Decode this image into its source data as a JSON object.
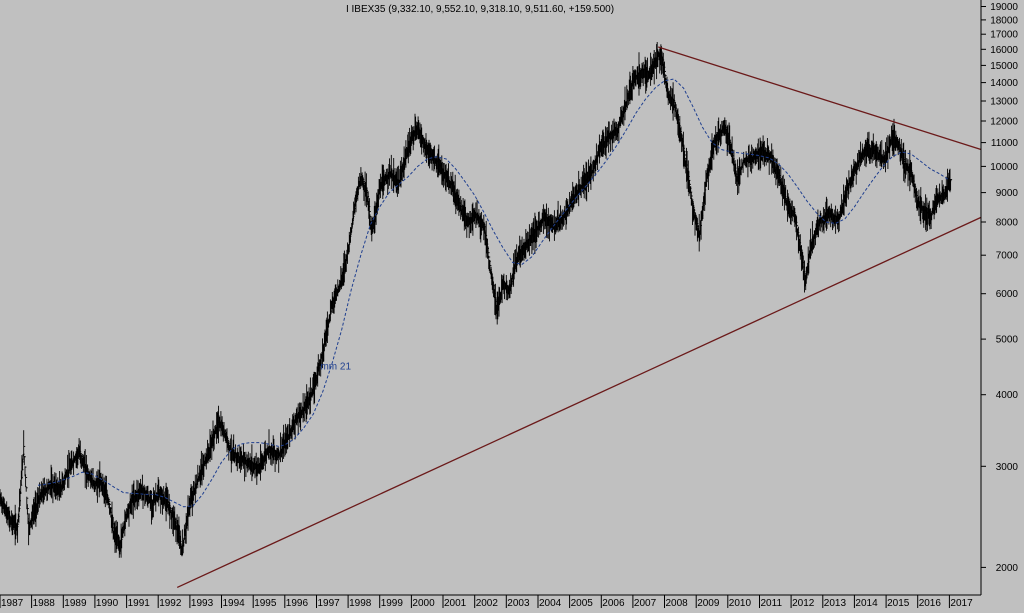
{
  "colors": {
    "background": "#c0c0c0",
    "bars": "#000000",
    "moving_average": "#1f3f8f",
    "trendlines": "#6b1a1a",
    "axis": "#000000"
  },
  "chart_data": {
    "type": "ohlc",
    "title": "I IBEX35 (9,332.10, 9,552.10, 9,318.10, 9,511.60, +159.500)",
    "xlabel": "",
    "ylabel": "",
    "y_scale": "log",
    "ylim": [
      1790,
      19500
    ],
    "xlim": [
      1987.0,
      2018.0
    ],
    "grid": false,
    "y_ticks": [
      2000,
      3000,
      4000,
      5000,
      6000,
      7000,
      8000,
      9000,
      10000,
      11000,
      12000,
      13000,
      14000,
      15000,
      16000,
      17000,
      18000,
      19000
    ],
    "x_ticks": [
      "1987",
      "1988",
      "1989",
      "1990",
      "1991",
      "1992",
      "1993",
      "1994",
      "1995",
      "1996",
      "1997",
      "1998",
      "1999",
      "2000",
      "2001",
      "2002",
      "2003",
      "2004",
      "2005",
      "2006",
      "2007",
      "2008",
      "2009",
      "2010",
      "2011",
      "2012",
      "2013",
      "2014",
      "2015",
      "2016",
      "2017"
    ],
    "series": [
      {
        "kind": "ohlc_close_path",
        "points": [
          [
            1987.0,
            2650
          ],
          [
            1987.3,
            2450
          ],
          [
            1987.55,
            2350
          ],
          [
            1987.75,
            3250
          ],
          [
            1987.9,
            2350
          ],
          [
            1988.0,
            2450
          ],
          [
            1988.3,
            2700
          ],
          [
            1988.6,
            2800
          ],
          [
            1988.9,
            2750
          ],
          [
            1989.2,
            3000
          ],
          [
            1989.5,
            3200
          ],
          [
            1989.8,
            2900
          ],
          [
            1990.0,
            2800
          ],
          [
            1990.2,
            2850
          ],
          [
            1990.45,
            2600
          ],
          [
            1990.6,
            2300
          ],
          [
            1990.8,
            2200
          ],
          [
            1991.0,
            2500
          ],
          [
            1991.2,
            2650
          ],
          [
            1991.5,
            2750
          ],
          [
            1991.8,
            2600
          ],
          [
            1992.0,
            2700
          ],
          [
            1992.3,
            2600
          ],
          [
            1992.55,
            2400
          ],
          [
            1992.75,
            2150
          ],
          [
            1993.0,
            2600
          ],
          [
            1993.3,
            2900
          ],
          [
            1993.6,
            3200
          ],
          [
            1993.9,
            3600
          ],
          [
            1994.1,
            3450
          ],
          [
            1994.3,
            3200
          ],
          [
            1994.6,
            3100
          ],
          [
            1994.9,
            3050
          ],
          [
            1995.2,
            3000
          ],
          [
            1995.5,
            3250
          ],
          [
            1995.8,
            3150
          ],
          [
            1996.0,
            3300
          ],
          [
            1996.3,
            3600
          ],
          [
            1996.6,
            3800
          ],
          [
            1996.9,
            4100
          ],
          [
            1997.2,
            4800
          ],
          [
            1997.5,
            5800
          ],
          [
            1997.8,
            6400
          ],
          [
            1998.0,
            7200
          ],
          [
            1998.2,
            8500
          ],
          [
            1998.4,
            9700
          ],
          [
            1998.6,
            9000
          ],
          [
            1998.75,
            7700
          ],
          [
            1999.0,
            9200
          ],
          [
            1999.3,
            9800
          ],
          [
            1999.6,
            9400
          ],
          [
            1999.8,
            10300
          ],
          [
            2000.0,
            11300
          ],
          [
            2000.2,
            11700
          ],
          [
            2000.5,
            10700
          ],
          [
            2000.8,
            10200
          ],
          [
            2001.0,
            9800
          ],
          [
            2001.3,
            9200
          ],
          [
            2001.6,
            8400
          ],
          [
            2001.8,
            8000
          ],
          [
            2002.0,
            8300
          ],
          [
            2002.3,
            7900
          ],
          [
            2002.5,
            6600
          ],
          [
            2002.7,
            5600
          ],
          [
            2002.9,
            6300
          ],
          [
            2003.1,
            6100
          ],
          [
            2003.3,
            6900
          ],
          [
            2003.6,
            7300
          ],
          [
            2003.9,
            7700
          ],
          [
            2004.2,
            8200
          ],
          [
            2004.5,
            7900
          ],
          [
            2004.8,
            8200
          ],
          [
            2005.1,
            8800
          ],
          [
            2005.4,
            9300
          ],
          [
            2005.7,
            9800
          ],
          [
            2005.9,
            10600
          ],
          [
            2006.2,
            11300
          ],
          [
            2006.5,
            11600
          ],
          [
            2006.8,
            13000
          ],
          [
            2007.0,
            14200
          ],
          [
            2007.3,
            14800
          ],
          [
            2007.55,
            14500
          ],
          [
            2007.8,
            15800
          ],
          [
            2007.95,
            15300
          ],
          [
            2008.1,
            13400
          ],
          [
            2008.3,
            13000
          ],
          [
            2008.5,
            11500
          ],
          [
            2008.7,
            10000
          ],
          [
            2008.9,
            8500
          ],
          [
            2009.1,
            7600
          ],
          [
            2009.3,
            9400
          ],
          [
            2009.6,
            11200
          ],
          [
            2009.9,
            11800
          ],
          [
            2010.1,
            10800
          ],
          [
            2010.3,
            9500
          ],
          [
            2010.5,
            10300
          ],
          [
            2010.8,
            10400
          ],
          [
            2011.0,
            10700
          ],
          [
            2011.3,
            10500
          ],
          [
            2011.6,
            9700
          ],
          [
            2011.9,
            8500
          ],
          [
            2012.1,
            8300
          ],
          [
            2012.3,
            7200
          ],
          [
            2012.45,
            6300
          ],
          [
            2012.6,
            7200
          ],
          [
            2012.9,
            8100
          ],
          [
            2013.2,
            8300
          ],
          [
            2013.5,
            8100
          ],
          [
            2013.8,
            9300
          ],
          [
            2014.1,
            10200
          ],
          [
            2014.4,
            10800
          ],
          [
            2014.7,
            10600
          ],
          [
            2014.95,
            10300
          ],
          [
            2015.2,
            11300
          ],
          [
            2015.4,
            11000
          ],
          [
            2015.6,
            10100
          ],
          [
            2015.8,
            9800
          ],
          [
            2016.0,
            8700
          ],
          [
            2016.2,
            8400
          ],
          [
            2016.4,
            8200
          ],
          [
            2016.6,
            8800
          ],
          [
            2016.8,
            8900
          ],
          [
            2017.0,
            9400
          ],
          [
            2017.05,
            9511.6
          ]
        ]
      },
      {
        "name": "mm 21",
        "kind": "moving_average",
        "points": [
          [
            1988.2,
            2780
          ],
          [
            1988.6,
            2800
          ],
          [
            1988.9,
            2830
          ],
          [
            1989.3,
            2880
          ],
          [
            1989.6,
            2930
          ],
          [
            1989.9,
            2910
          ],
          [
            1990.3,
            2830
          ],
          [
            1990.6,
            2760
          ],
          [
            1990.9,
            2700
          ],
          [
            1991.3,
            2690
          ],
          [
            1991.6,
            2680
          ],
          [
            1991.9,
            2680
          ],
          [
            1992.2,
            2650
          ],
          [
            1992.5,
            2600
          ],
          [
            1992.8,
            2550
          ],
          [
            1993.1,
            2560
          ],
          [
            1993.4,
            2680
          ],
          [
            1993.7,
            2850
          ],
          [
            1994.0,
            3050
          ],
          [
            1994.3,
            3200
          ],
          [
            1994.6,
            3280
          ],
          [
            1994.9,
            3300
          ],
          [
            1995.2,
            3300
          ],
          [
            1995.5,
            3280
          ],
          [
            1995.8,
            3250
          ],
          [
            1996.0,
            3270
          ],
          [
            1996.3,
            3350
          ],
          [
            1996.6,
            3500
          ],
          [
            1996.9,
            3700
          ],
          [
            1997.2,
            4050
          ],
          [
            1997.5,
            4550
          ],
          [
            1997.8,
            5200
          ],
          [
            1998.1,
            6100
          ],
          [
            1998.4,
            7000
          ],
          [
            1998.7,
            7900
          ],
          [
            1999.0,
            8500
          ],
          [
            1999.3,
            9000
          ],
          [
            1999.6,
            9300
          ],
          [
            1999.9,
            9600
          ],
          [
            2000.2,
            10000
          ],
          [
            2000.5,
            10300
          ],
          [
            2000.8,
            10400
          ],
          [
            2001.1,
            10300
          ],
          [
            2001.4,
            9900
          ],
          [
            2001.7,
            9400
          ],
          [
            2002.0,
            8900
          ],
          [
            2002.3,
            8300
          ],
          [
            2002.6,
            7700
          ],
          [
            2002.9,
            7200
          ],
          [
            2003.2,
            6800
          ],
          [
            2003.5,
            6750
          ],
          [
            2003.8,
            6950
          ],
          [
            2004.1,
            7350
          ],
          [
            2004.4,
            7750
          ],
          [
            2004.7,
            8150
          ],
          [
            2005.0,
            8550
          ],
          [
            2005.3,
            8950
          ],
          [
            2005.6,
            9350
          ],
          [
            2005.9,
            9800
          ],
          [
            2006.2,
            10300
          ],
          [
            2006.5,
            10900
          ],
          [
            2006.8,
            11600
          ],
          [
            2007.1,
            12400
          ],
          [
            2007.4,
            13100
          ],
          [
            2007.7,
            13700
          ],
          [
            2008.0,
            14100
          ],
          [
            2008.3,
            14200
          ],
          [
            2008.6,
            13700
          ],
          [
            2008.9,
            12700
          ],
          [
            2009.2,
            11700
          ],
          [
            2009.5,
            11000
          ],
          [
            2009.8,
            10700
          ],
          [
            2010.1,
            10600
          ],
          [
            2010.4,
            10550
          ],
          [
            2010.7,
            10500
          ],
          [
            2010.95,
            10450
          ],
          [
            2011.3,
            10350
          ],
          [
            2011.6,
            10100
          ],
          [
            2011.9,
            9700
          ],
          [
            2012.2,
            9200
          ],
          [
            2012.5,
            8700
          ],
          [
            2012.8,
            8300
          ],
          [
            2013.1,
            8000
          ],
          [
            2013.4,
            7950
          ],
          [
            2013.7,
            8100
          ],
          [
            2014.0,
            8500
          ],
          [
            2014.3,
            9000
          ],
          [
            2014.6,
            9500
          ],
          [
            2014.9,
            10000
          ],
          [
            2015.2,
            10400
          ],
          [
            2015.5,
            10600
          ],
          [
            2015.8,
            10500
          ],
          [
            2016.1,
            10200
          ],
          [
            2016.4,
            9900
          ],
          [
            2016.7,
            9700
          ],
          [
            2016.95,
            9500
          ]
        ]
      },
      {
        "kind": "trendline_support",
        "points": [
          [
            1992.6,
            1845
          ],
          [
            2018.0,
            8150
          ]
        ]
      },
      {
        "kind": "trendline_resistance",
        "points": [
          [
            2007.8,
            16150
          ],
          [
            2018.0,
            10700
          ]
        ]
      }
    ],
    "annotations": [
      {
        "text": "mm 21",
        "x": 1997.0,
        "y": 4500
      }
    ]
  }
}
